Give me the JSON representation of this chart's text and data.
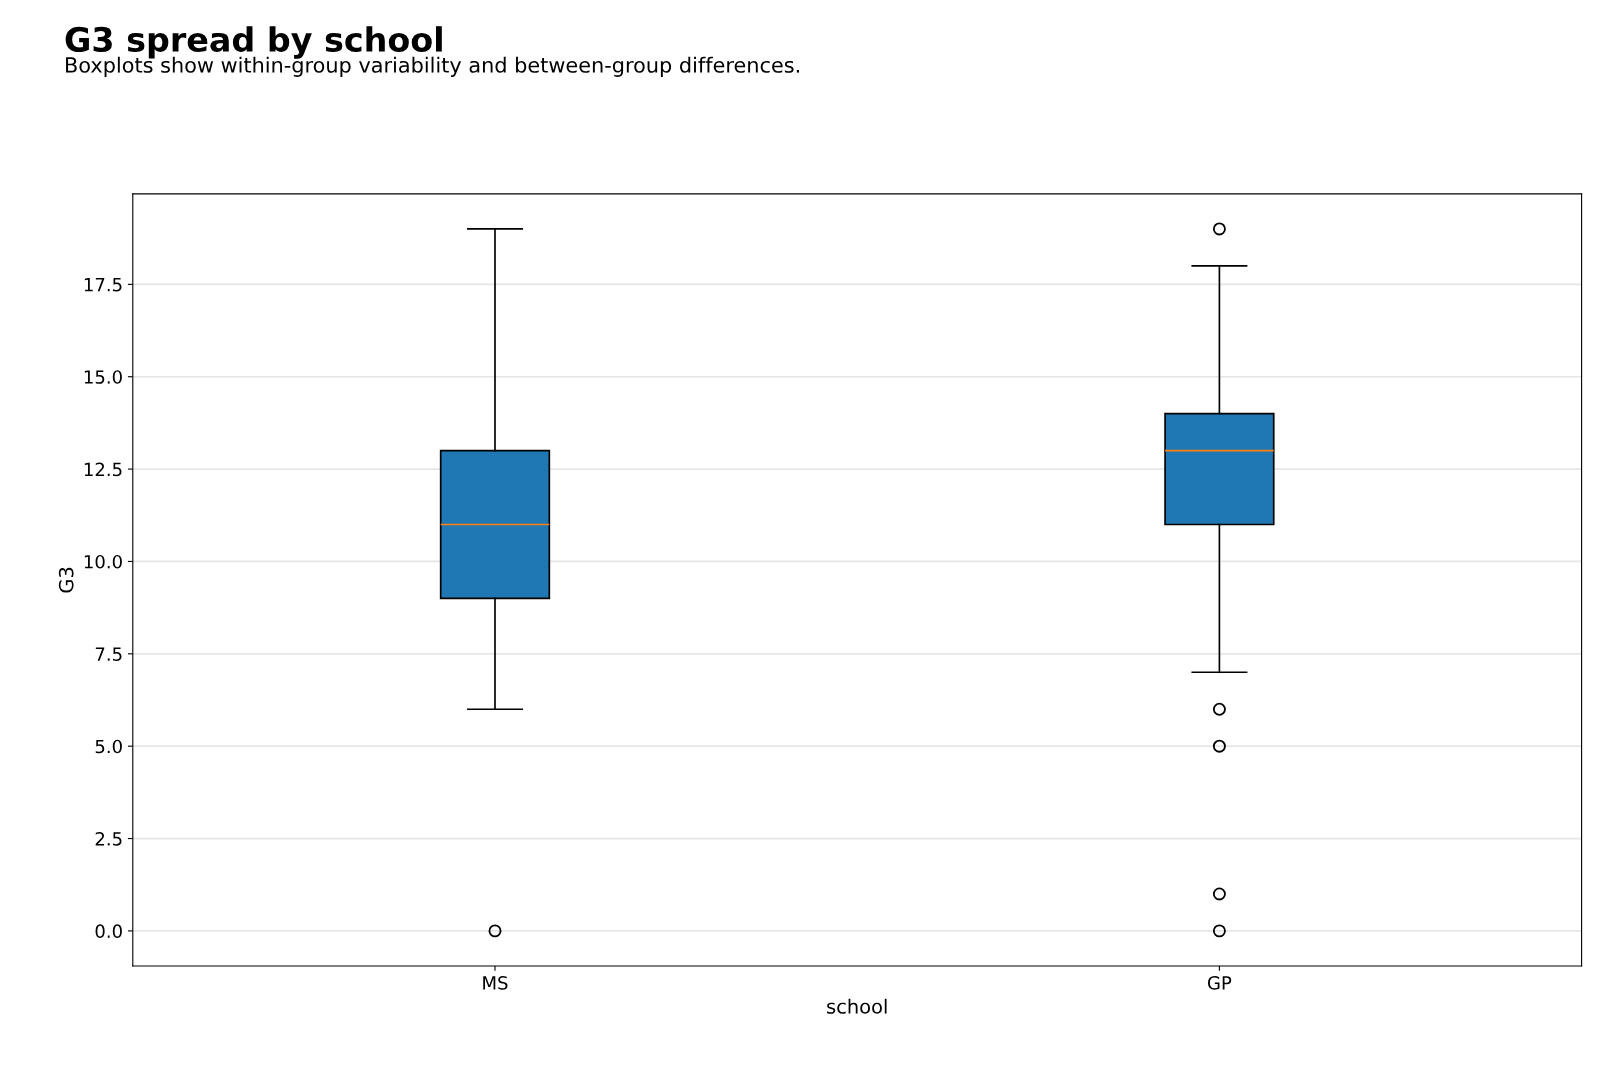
{
  "chart_data": {
    "type": "box",
    "title": "G3 spread by school",
    "subtitle": "Boxplots show within-group variability and between-group differences.",
    "xlabel": "school",
    "ylabel": "G3",
    "categories": [
      "MS",
      "GP"
    ],
    "series": [
      {
        "color": "#1f77b4",
        "boxes": [
          {
            "low": 6,
            "q1": 9,
            "median": 11,
            "q3": 13,
            "high": 19,
            "outliers": [
              0
            ]
          },
          {
            "low": 7,
            "q1": 11,
            "median": 13,
            "q3": 14,
            "high": 18,
            "outliers": [
              19,
              6,
              5,
              1,
              0
            ]
          }
        ]
      }
    ],
    "ylim": [
      -0.95,
      19.95
    ],
    "yticks": [
      {
        "value": 0,
        "label": "0.0"
      },
      {
        "value": 2.5,
        "label": "2.5"
      },
      {
        "value": 5,
        "label": "5.0"
      },
      {
        "value": 7.5,
        "label": "7.5"
      },
      {
        "value": 10,
        "label": "10.0"
      },
      {
        "value": 12.5,
        "label": "12.5"
      },
      {
        "value": 15,
        "label": "15.0"
      },
      {
        "value": 17.5,
        "label": "17.5"
      }
    ],
    "grid": "y"
  }
}
